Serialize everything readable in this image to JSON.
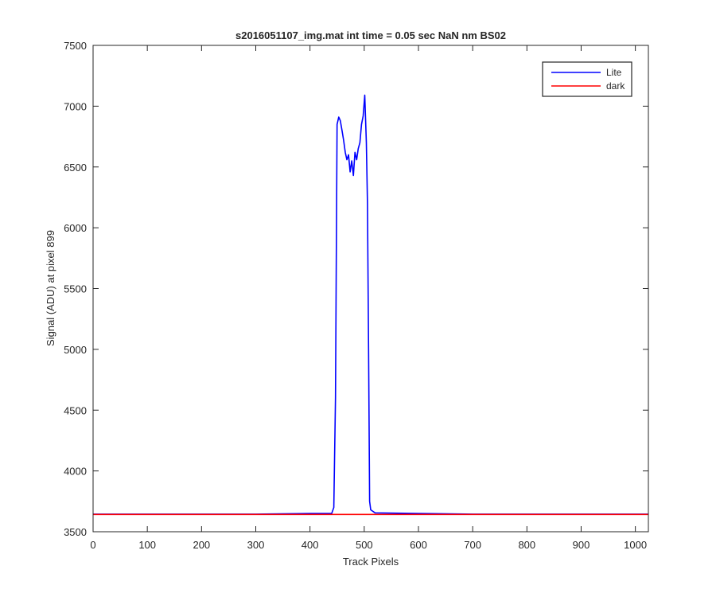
{
  "chart_data": {
    "type": "line",
    "title": "s2016051107_img.mat int time = 0.05 sec  NaN nm BS02",
    "xlabel": "Track Pixels",
    "ylabel": "Signal (ADU) at pixel 899",
    "xlim": [
      0,
      1024
    ],
    "ylim": [
      3500,
      7500
    ],
    "xticks": [
      0,
      100,
      200,
      300,
      400,
      500,
      600,
      700,
      800,
      900,
      1000
    ],
    "yticks": [
      3500,
      4000,
      4500,
      5000,
      5500,
      6000,
      6500,
      7000,
      7500
    ],
    "grid": false,
    "legend_position": "top-right",
    "series": [
      {
        "name": "Lite",
        "color": "#0000ff",
        "x": [
          0,
          100,
          200,
          300,
          400,
          440,
          444,
          447,
          450,
          453,
          456,
          459,
          462,
          465,
          468,
          471,
          474,
          477,
          480,
          483,
          486,
          489,
          492,
          495,
          498,
          501,
          504,
          506,
          508,
          510,
          512,
          520,
          600,
          700,
          800,
          900,
          1024
        ],
        "y": [
          3645,
          3645,
          3645,
          3645,
          3650,
          3650,
          3700,
          4600,
          6850,
          6910,
          6880,
          6800,
          6720,
          6620,
          6560,
          6600,
          6460,
          6550,
          6430,
          6620,
          6560,
          6650,
          6700,
          6850,
          6920,
          7090,
          6700,
          6200,
          5000,
          3750,
          3680,
          3655,
          3650,
          3645,
          3645,
          3645,
          3645
        ]
      },
      {
        "name": "dark",
        "color": "#ff0000",
        "x": [
          0,
          100,
          200,
          300,
          400,
          500,
          600,
          700,
          800,
          900,
          1024
        ],
        "y": [
          3642,
          3642,
          3642,
          3642,
          3642,
          3642,
          3642,
          3642,
          3642,
          3642,
          3642
        ]
      }
    ]
  }
}
